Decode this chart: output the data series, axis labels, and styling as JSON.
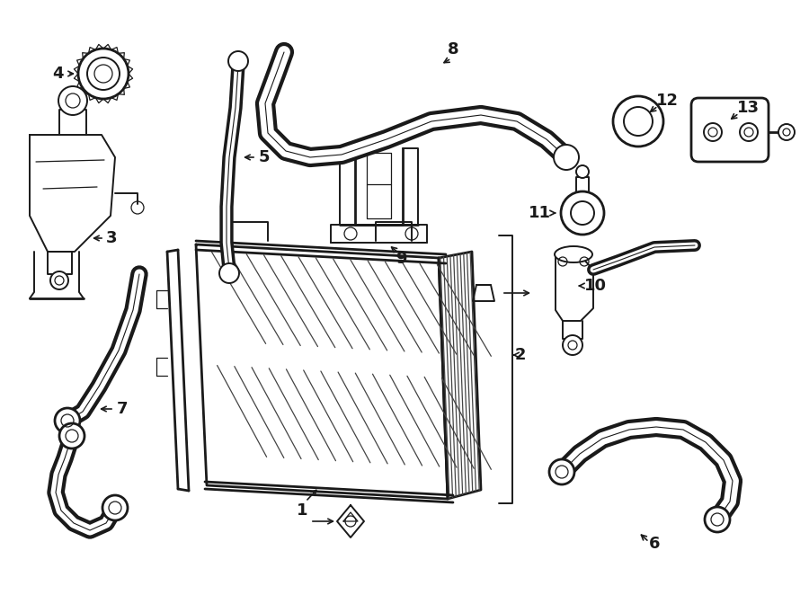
{
  "bg_color": "#ffffff",
  "line_color": "#1a1a1a",
  "lw_thick": 2.0,
  "lw_med": 1.4,
  "lw_thin": 0.9,
  "label_fontsize": 13,
  "fig_width": 9.0,
  "fig_height": 6.62
}
